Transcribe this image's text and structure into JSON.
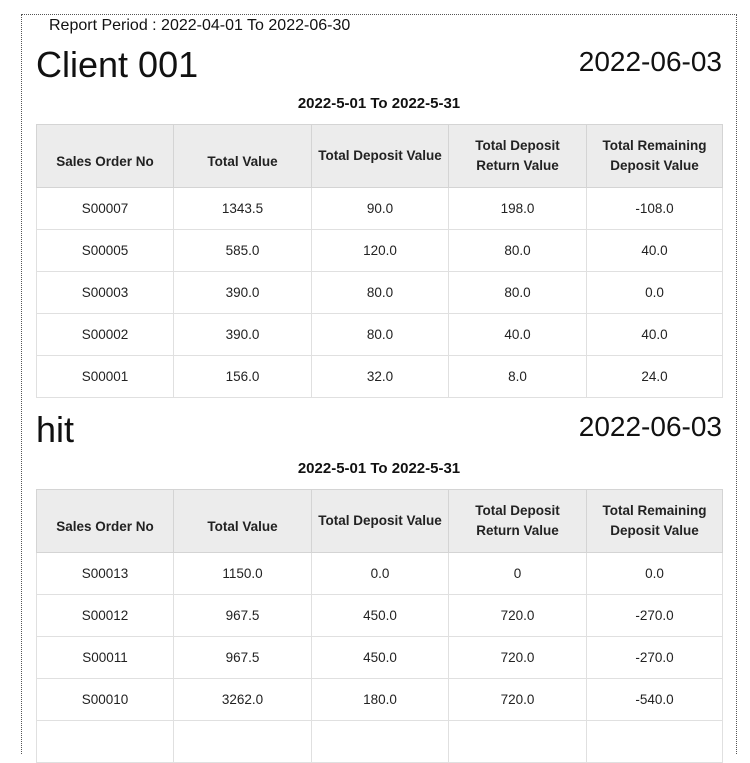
{
  "report": {
    "period_label": "Report Period : 2022-04-01 To 2022-06-30"
  },
  "columns": [
    "Sales Order No",
    "Total Value",
    "Total Deposit Value",
    "Total Deposit Return Value",
    "Total Remaining Deposit Value"
  ],
  "clients": [
    {
      "name": "Client 001",
      "date": "2022-06-03",
      "period": "2022-5-01 To 2022-5-31",
      "rows": [
        [
          "S00007",
          "1343.5",
          "90.0",
          "198.0",
          "-108.0"
        ],
        [
          "S00005",
          "585.0",
          "120.0",
          "80.0",
          "40.0"
        ],
        [
          "S00003",
          "390.0",
          "80.0",
          "80.0",
          "0.0"
        ],
        [
          "S00002",
          "390.0",
          "80.0",
          "40.0",
          "40.0"
        ],
        [
          "S00001",
          "156.0",
          "32.0",
          "8.0",
          "24.0"
        ]
      ]
    },
    {
      "name": "hit",
      "date": "2022-06-03",
      "period": "2022-5-01 To 2022-5-31",
      "rows": [
        [
          "S00013",
          "1150.0",
          "0.0",
          "0",
          "0.0"
        ],
        [
          "S00012",
          "967.5",
          "450.0",
          "720.0",
          "-270.0"
        ],
        [
          "S00011",
          "967.5",
          "450.0",
          "720.0",
          "-270.0"
        ],
        [
          "S00010",
          "3262.0",
          "180.0",
          "720.0",
          "-540.0"
        ]
      ]
    }
  ]
}
